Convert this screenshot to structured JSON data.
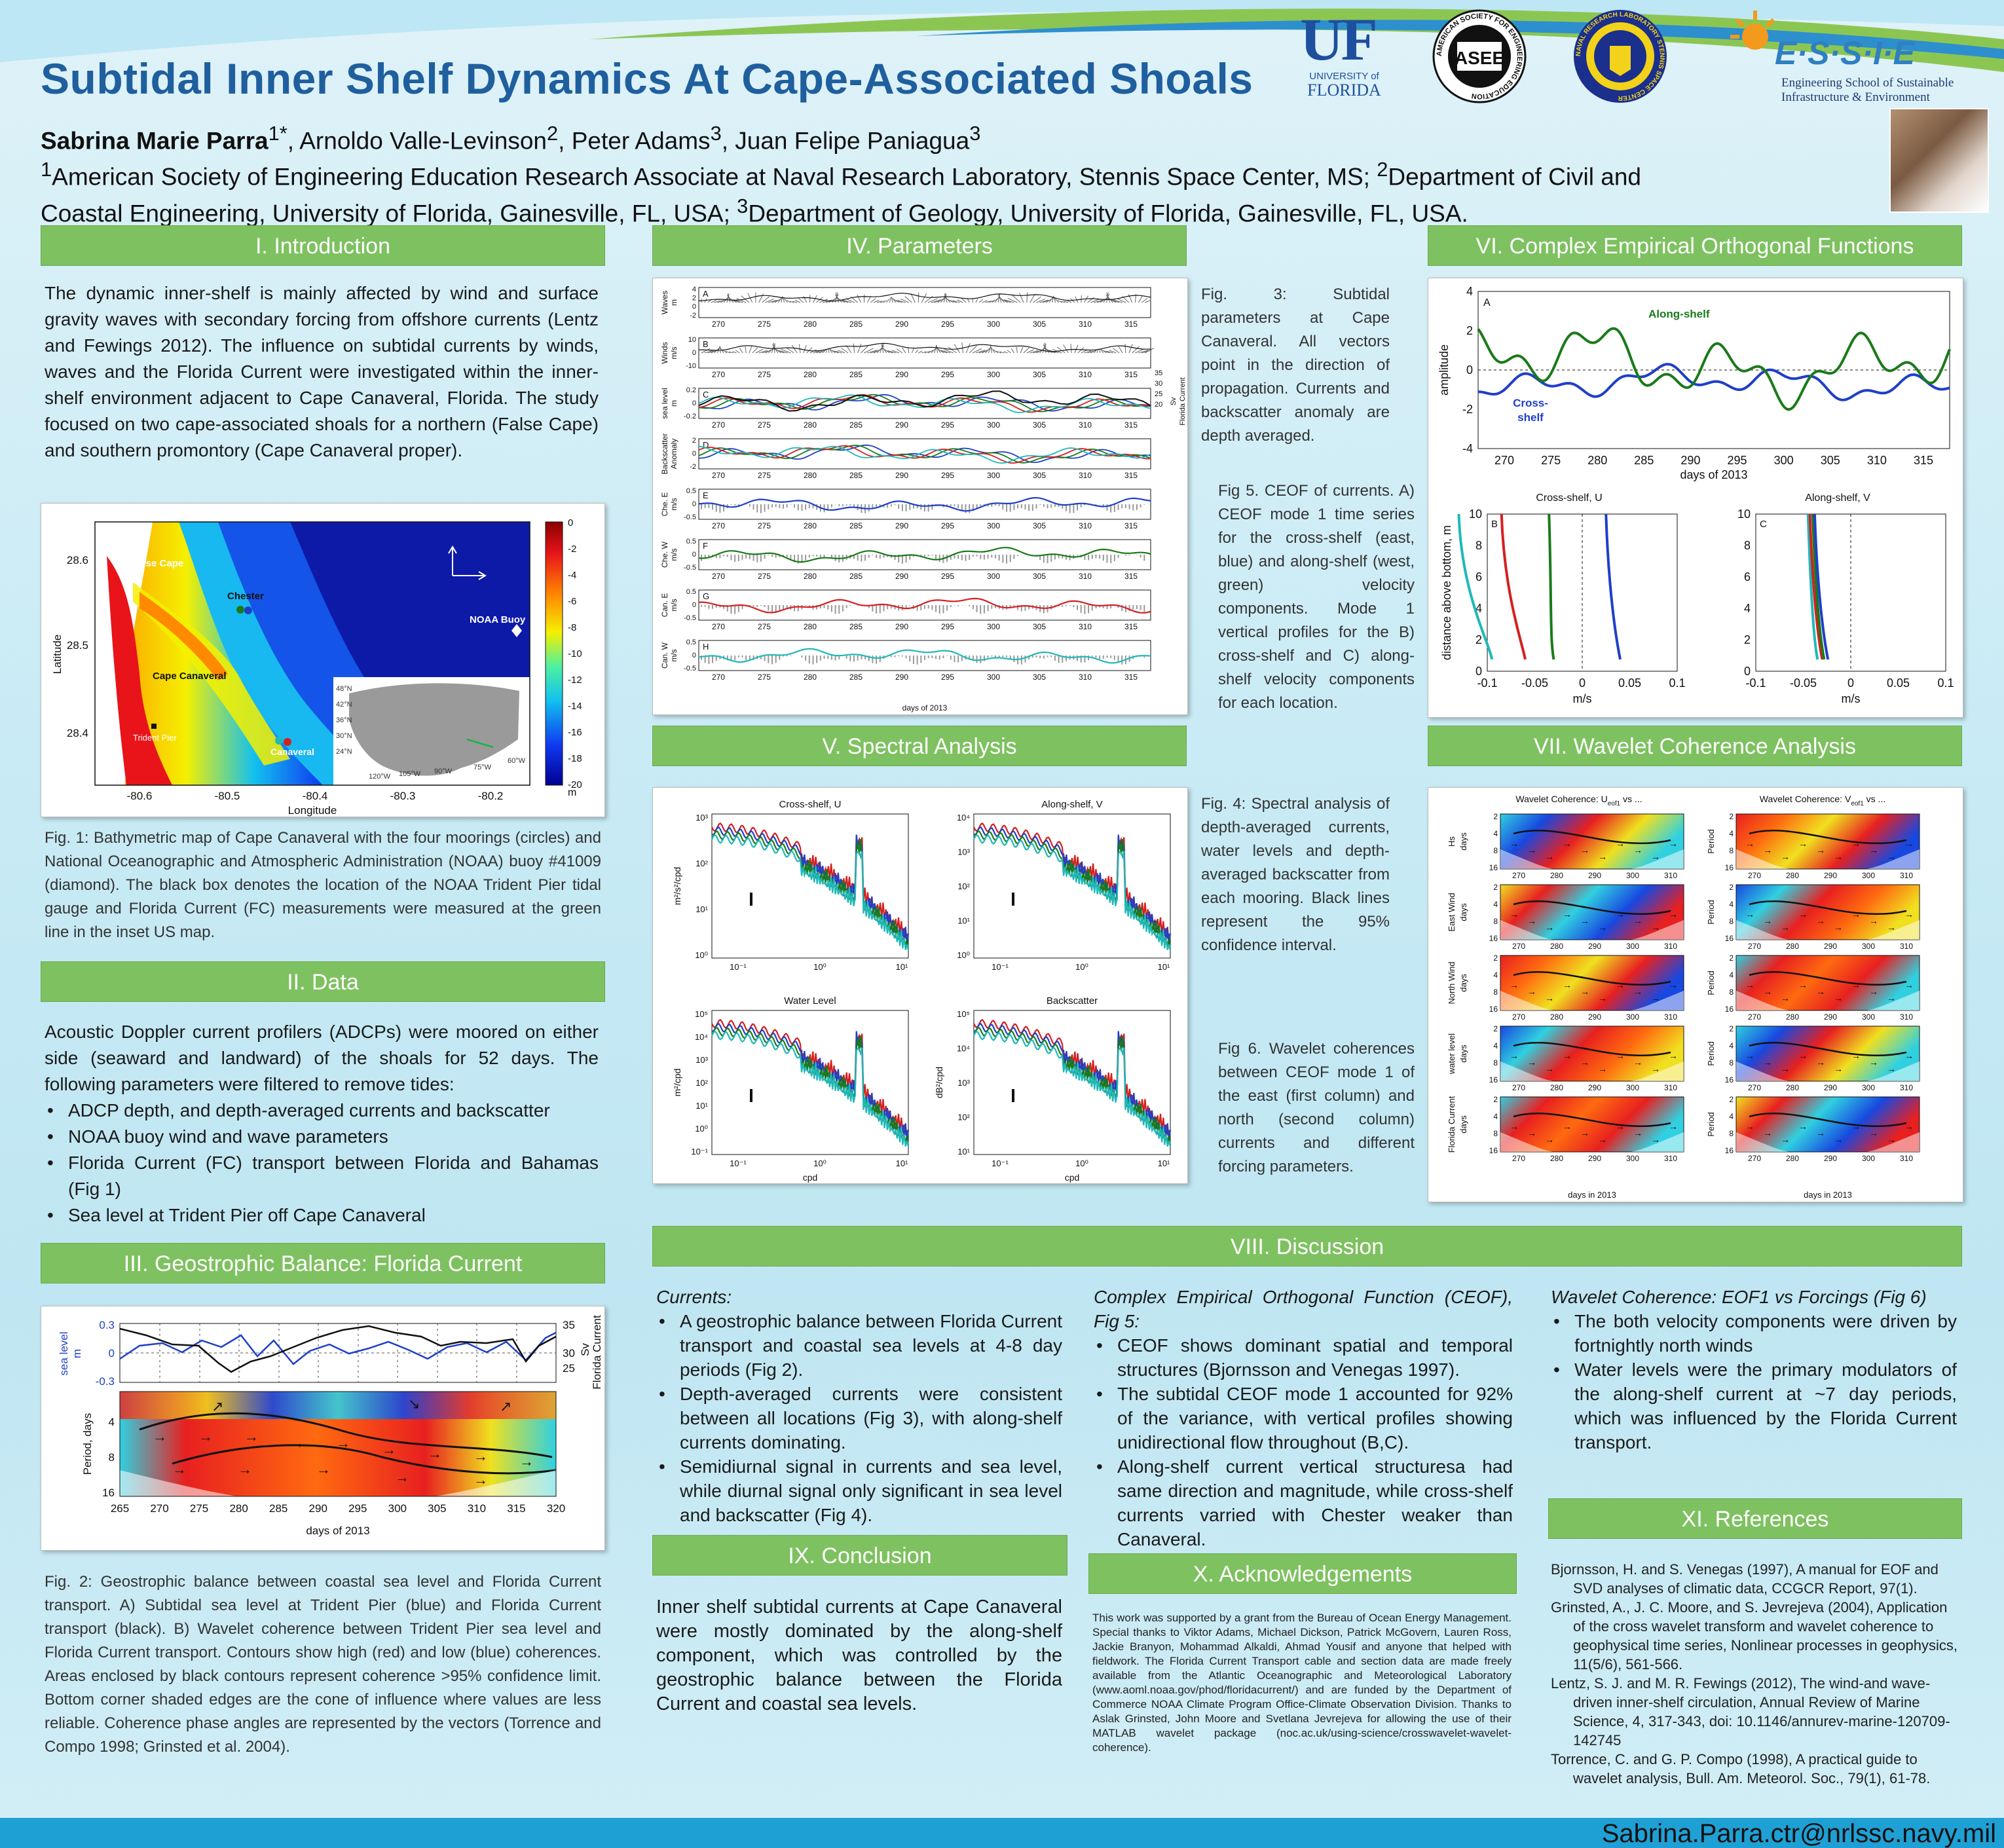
{
  "header": {
    "title": "Subtidal Inner Shelf Dynamics At Cape-Associated Shoals",
    "authors": {
      "lead": "Sabrina Marie Parra",
      "lead_sup": "1*",
      "a2": ", Arnoldo Valle-Levinson",
      "a2_sup": "2",
      "a3": ", Peter Adams",
      "a3_sup": "3",
      "a4": ", Juan Felipe Paniagua",
      "a4_sup": "3"
    },
    "affiliation": {
      "s1": "1",
      "t1": "American Society of Engineering Education Research Associate at Naval Research Laboratory, Stennis Space Center, MS; ",
      "s2": "2",
      "t2": "Department of Civil and Coastal Engineering, University of Florida, Gainesville, FL, USA; ",
      "s3": "3",
      "t3": "Department of Geology, University of Florida, Gainesville, FL, USA."
    },
    "logos": {
      "uf_main": "UF",
      "uf_sub1": "UNIVERSITY of",
      "uf_sub2": "FLORIDA",
      "asee": "ASEE",
      "asee_ring": "AMERICAN SOCIETY FOR ENGINEERING EDUCATION",
      "nrl_ring": "NAVAL RESEARCH LABORATORY STENNIS SPACE CENTER",
      "essie": "E·S·S·I·E",
      "essie_sub1": "Engineering School of Sustainable",
      "essie_sub2": "Infrastructure & Environment"
    }
  },
  "sections": {
    "intro": {
      "header": "I. Introduction",
      "body": "The dynamic inner-shelf is mainly affected by wind and surface gravity waves with secondary forcing from offshore currents (Lentz and Fewings 2012). The influence on subtidal currents by winds, waves and the Florida Current were investigated within the inner-shelf environment adjacent to Cape Canaveral, Florida. The study focused on two cape-associated shoals for a northern (False Cape) and southern promontory (Cape Canaveral proper).",
      "fig1_caption": "Fig. 1: Bathymetric map of Cape Canaveral with the four moorings (circles) and National Oceanographic and Atmospheric Administration (NOAA) buoy #41009 (diamond). The black box denotes the location of the NOAA Trident Pier tidal gauge and Florida Current (FC) measurements were measured at the green line in the inset US map."
    },
    "data": {
      "header": "II. Data",
      "intro": "Acoustic Doppler current profilers (ADCPs) were moored on either side (seaward and landward) of the shoals for 52 days. The following parameters were filtered to remove tides:",
      "bullets": [
        "ADCP depth, and depth-averaged currents and backscatter",
        "NOAA buoy wind and wave parameters",
        "Florida Current (FC) transport between Florida and Bahamas (Fig 1)",
        "Sea level at Trident Pier off Cape Canaveral"
      ]
    },
    "geo": {
      "header": "III. Geostrophic Balance: Florida Current",
      "fig2_caption": "Fig. 2: Geostrophic balance between coastal sea level and Florida Current transport. A) Subtidal sea level at Trident Pier (blue) and Florida Current transport (black). B) Wavelet coherence between Trident Pier sea level and Florida Current transport. Contours show high (red) and low (blue) coherences. Areas enclosed by black contours represent coherence >95% confidence limit. Bottom corner shaded edges are the cone of influence where values are less reliable. Coherence phase angles are represented by the vectors (Torrence and Compo 1998; Grinsted et al. 2004)."
    },
    "params": {
      "header": "IV. Parameters",
      "fig3_caption": "Fig. 3: Subtidal parameters at Cape Canaveral. All vectors point in the direction of propagation. Currents and backscatter anomaly are depth averaged."
    },
    "spectral": {
      "header": "V. Spectral Analysis",
      "fig4_caption": "Fig. 4: Spectral analysis of depth-averaged currents, water levels and depth-averaged backscatter from each mooring. Black lines represent the 95% confidence interval."
    },
    "ceof": {
      "header": "VI. Complex Empirical Orthogonal Functions",
      "fig5_caption": "Fig 5. CEOF of currents. A) CEOF mode 1 time series for the cross-shelf (east, blue) and along-shelf (west, green) velocity components. Mode 1 vertical profiles for the B) cross-shelf and C) along-shelf velocity components for each location."
    },
    "wavelet": {
      "header": "VII. Wavelet Coherence Analysis",
      "fig6_caption": "Fig 6. Wavelet coherences between CEOF mode 1 of the east (first column) and north (second column) currents and different forcing parameters."
    },
    "discussion": {
      "header": "VIII. Discussion",
      "col1_title": "Currents",
      "col1_bullets": [
        "A geostrophic balance between Florida Current transport and coastal sea levels at 4-8 day periods (Fig 2).",
        "Depth-averaged currents were consistent between all locations (Fig 3), with along-shelf currents dominating.",
        "Semidiurnal signal in currents and sea level, while diurnal signal only significant in sea level and backscatter (Fig 4)."
      ],
      "col2_title": "Complex Empirical Orthogonal Function (CEOF), Fig 5",
      "col2_bullets": [
        "CEOF shows dominant spatial and temporal structures (Bjornsson and Venegas 1997).",
        "The subtidal CEOF mode 1 accounted for 92% of the variance, with vertical profiles showing unidirectional flow throughout (B,C).",
        "Along-shelf current vertical structuresa had same direction and magnitude, while cross-shelf currents varried with Chester weaker than Canaveral."
      ],
      "col3_title": "Wavelet Coherence: EOF1 vs Forcings (Fig 6)",
      "col3_bullets": [
        "The both velocity components were driven by fortnightly north winds",
        "Water levels were the primary modulators of the along-shelf current at ~7 day periods, which was influenced by the Florida Current transport."
      ]
    },
    "conclusion": {
      "header": "IX. Conclusion",
      "body": "Inner shelf subtidal currents at Cape Canaveral were mostly dominated by the along-shelf component, which was controlled by the geostrophic balance between the Florida Current and coastal sea levels."
    },
    "ack": {
      "header": "X. Acknowledgements",
      "body": "This work was supported by a grant from the Bureau of Ocean Energy Management. Special thanks to Viktor Adams, Michael Dickson, Patrick McGovern, Lauren Ross, Jackie Branyon, Mohammad Alkaldi, Ahmad Yousif and anyone that helped with fieldwork. The Florida Current Transport cable and section data are made freely available from the Atlantic Oceanographic and Meteorological Laboratory (www.aoml.noaa.gov/phod/floridacurrent/) and are funded by the Department of Commerce NOAA Climate Program Office-Climate Observation Division. Thanks to Aslak Grinsted, John Moore and Svetlana Jevrejeva for allowing the use of their MATLAB wavelet package (noc.ac.uk/using-science/crosswavelet-wavelet-coherence)."
    },
    "refs": {
      "header": "XI. References",
      "items": [
        "Bjornsson, H. and S. Venegas (1997), A manual for EOF and SVD analyses of climatic data, CCGCR Report, 97(1).",
        "Grinsted, A., J. C. Moore, and S. Jevrejeva (2004), Application of the cross wavelet transform and wavelet coherence to geophysical time series, Nonlinear processes in geophysics, 11(5/6), 561-566.",
        "Lentz, S. J. and M. R. Fewings (2012), The wind-and wave-driven inner-shelf circulation, Annual Review of Marine Science, 4, 317-343, doi: 10.1146/annurev-marine-120709-142745",
        "Torrence, C. and G. P. Compo (1998), A practical guide to wavelet analysis, Bull. Am. Meteorol. Soc., 79(1), 61-78."
      ]
    }
  },
  "fig1_labels": {
    "false_cape": "False Cape",
    "chester": "Chester",
    "cape_canaveral": "Cape Canaveral",
    "trident_pier": "Trident Pier",
    "canaveral": "Canaveral",
    "noaa_buoy": "NOAA Buoy",
    "xlabel": "Longitude",
    "ylabel": "Latitude",
    "xticks": [
      "-80.6",
      "-80.5",
      "-80.4",
      "-80.3",
      "-80.2"
    ],
    "yticks": [
      "28.6",
      "28.5",
      "28.4"
    ],
    "cbar_ticks": [
      "0",
      "-2",
      "-4",
      "-6",
      "-8",
      "-10",
      "-12",
      "-14",
      "-16",
      "-18",
      "-20"
    ],
    "cbar_unit": "m",
    "inset_lats": [
      "48°N",
      "42°N",
      "36°N",
      "30°N",
      "24°N"
    ],
    "inset_lons": [
      "120°W",
      "105°W",
      "90°W",
      "75°W",
      "60°W"
    ]
  },
  "fig2_labels": {
    "ylabel_left": "sea level",
    "ylabel_left_unit": "m",
    "ylabel_right": "Sv",
    "ylabel_right2": "Florida Current",
    "left_ticks": [
      "0.3",
      "0",
      "-0.3"
    ],
    "right_ticks": [
      "35",
      "30",
      "25"
    ],
    "period_label": "Period, days",
    "period_ticks": [
      "4",
      "8",
      "16"
    ],
    "xlabel": "days of 2013",
    "xticks": [
      "265",
      "270",
      "275",
      "280",
      "285",
      "290",
      "295",
      "300",
      "305",
      "310",
      "315",
      "320"
    ]
  },
  "fig3_labels": {
    "panels": [
      {
        "letter": "A",
        "ylabel": "Waves",
        "unit": "m",
        "ticks": [
          "4",
          "2",
          "0",
          "-2"
        ]
      },
      {
        "letter": "B",
        "ylabel": "Winds",
        "unit": "m/s",
        "ticks": [
          "10",
          "0",
          "-10"
        ]
      },
      {
        "letter": "C",
        "ylabel": "sea level",
        "unit": "m",
        "ticks": [
          "0.2",
          "0",
          "-0.2"
        ]
      },
      {
        "letter": "D",
        "ylabel": "Backscatter",
        "unit": "Anomaly",
        "ticks": [
          "2",
          "0",
          "-2"
        ]
      },
      {
        "letter": "E",
        "ylabel": "Che. E",
        "unit": "m/s",
        "ticks": [
          "0.5",
          "0",
          "-0.5"
        ]
      },
      {
        "letter": "F",
        "ylabel": "Che. W",
        "unit": "m/s",
        "ticks": [
          "0.5",
          "0",
          "-0.5"
        ]
      },
      {
        "letter": "G",
        "ylabel": "Can. E",
        "unit": "m/s",
        "ticks": [
          "0.5",
          "0",
          "-0.5"
        ]
      },
      {
        "letter": "H",
        "ylabel": "Can. W",
        "unit": "m/s",
        "ticks": [
          "0.5",
          "0",
          "-0.5"
        ]
      }
    ],
    "right_ticks": [
      "35",
      "30",
      "25",
      "20"
    ],
    "right_label": "Sv",
    "right_label2": "Florida Current",
    "xticks": [
      "270",
      "275",
      "280",
      "285",
      "290",
      "295",
      "300",
      "305",
      "310",
      "315"
    ],
    "xlabel": "days of 2013"
  },
  "fig4_labels": {
    "titles": [
      "Cross-shelf, U",
      "Along-shelf, V",
      "Water Level",
      "Backscatter"
    ],
    "ylabels": [
      "m²/s²/cpd",
      "",
      "m²/cpd",
      "dB²/cpd"
    ],
    "xlabel": "cpd",
    "xticks": [
      "10⁻¹",
      "10⁰",
      "10¹"
    ],
    "yticks_top_left": [
      "10³",
      "10²",
      "10¹",
      "10⁰"
    ],
    "yticks_top_right": [
      "10⁴",
      "10³",
      "10²",
      "10¹",
      "10⁰"
    ],
    "yticks_bottom_left": [
      "10⁵",
      "10⁴",
      "10³",
      "10²",
      "10¹",
      "10⁰",
      "10⁻¹"
    ],
    "yticks_bottom_right": [
      "10⁵",
      "10⁴",
      "10³",
      "10²",
      "10¹"
    ]
  },
  "fig5_labels": {
    "panel_a": "A",
    "panel_b": "B",
    "panel_c": "C",
    "along_shelf": "Along-shelf",
    "cross_shelf1": "Cross-",
    "cross_shelf2": "shelf",
    "ylabel_a": "amplitude",
    "yticks_a": [
      "4",
      "2",
      "0",
      "-2",
      "-4"
    ],
    "xticks_a": [
      "270",
      "275",
      "280",
      "285",
      "290",
      "295",
      "300",
      "305",
      "310",
      "315"
    ],
    "xlabel_a": "days of 2013",
    "title_b": "Cross-shelf, U",
    "title_c": "Along-shelf, V",
    "ylabel_b": "distance above bottom, m",
    "yticks_b": [
      "10",
      "8",
      "6",
      "4",
      "2",
      "0"
    ],
    "xticks_b": [
      "-0.1",
      "-0.05",
      "0",
      "0.05",
      "0.1"
    ],
    "xlabel_b": "m/s"
  },
  "fig6_labels": {
    "col1_title": "Wavelet Coherence: U",
    "col1_sub": "eof1",
    "col1_tail": " vs ...",
    "col2_title": "Wavelet Coherence: V",
    "col2_sub": "eof1",
    "col2_tail": " vs ...",
    "row_labels": [
      "Hs",
      "East Wind",
      "North Wind",
      "water level",
      "Florida Current"
    ],
    "left_unit": "days",
    "right_unit": "Period",
    "yticks": [
      "2",
      "4",
      "8",
      "16"
    ],
    "xticks": [
      "270",
      "280",
      "290",
      "300",
      "310"
    ],
    "xlabel": "days in 2013"
  },
  "footer": {
    "email": "Sabrina.Parra.ctr@nrlssc.navy.mil"
  },
  "colors": {
    "section_header": "#7ec160",
    "title": "#1f5f9e",
    "email_bar": "#1fa0d5",
    "series_blue": "#1f3fc8",
    "series_green": "#1a7a1a",
    "series_red": "#d42020",
    "series_cyan": "#20b8b8"
  }
}
